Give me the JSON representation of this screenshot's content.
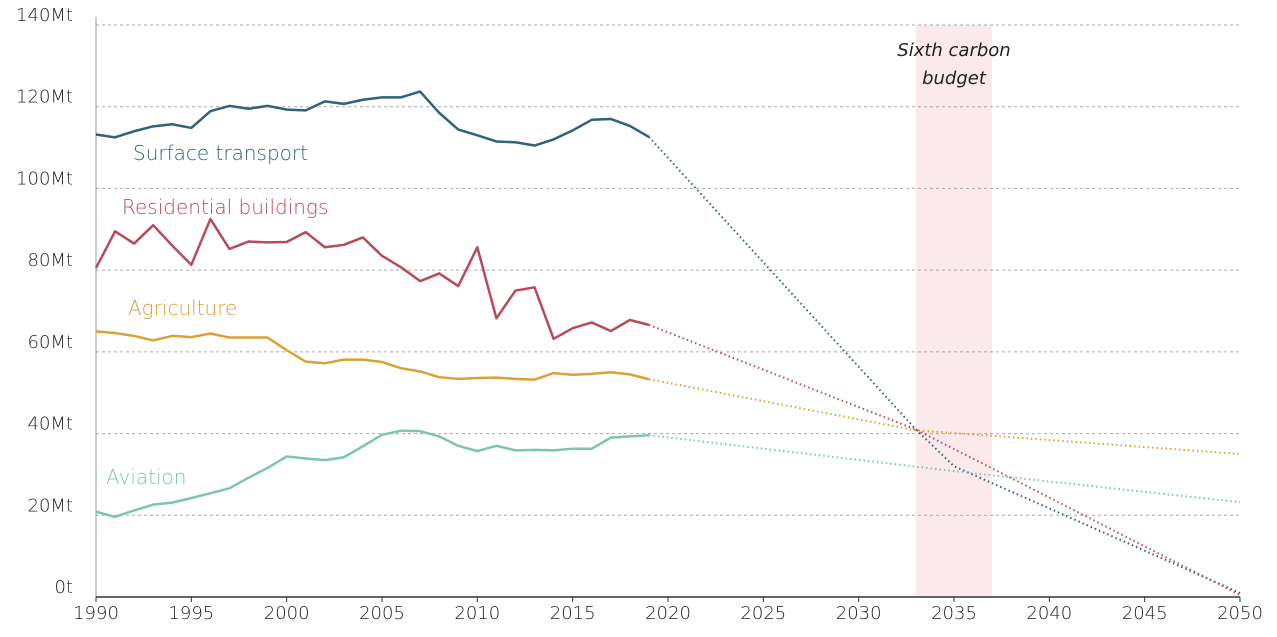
{
  "chart_data": {
    "type": "line",
    "x": [
      1990,
      1991,
      1992,
      1993,
      1994,
      1995,
      1996,
      1997,
      1998,
      1999,
      2000,
      2001,
      2002,
      2003,
      2004,
      2005,
      2006,
      2007,
      2008,
      2009,
      2010,
      2011,
      2012,
      2013,
      2014,
      2015,
      2016,
      2017,
      2018,
      2019
    ],
    "series": [
      {
        "name": "Surface transport",
        "color": "#2e6378",
        "values": [
          113.2,
          112.5,
          114,
          115.2,
          115.7,
          114.8,
          118.9,
          120.2,
          119.5,
          120.2,
          119.3,
          119.1,
          121.3,
          120.7,
          121.7,
          122.3,
          122.3,
          123.7,
          118.5,
          114.4,
          113,
          111.5,
          111.3,
          110.5,
          112,
          114.2,
          116.8,
          117,
          115.3,
          112.6
        ],
        "projection": {
          "x": [
            2019,
            2033,
            2035,
            2050
          ],
          "values": [
            112.6,
            41,
            32,
            1
          ]
        }
      },
      {
        "name": "Residential buildings",
        "color": "#b94a5a",
        "values": [
          80.5,
          89.5,
          86.5,
          91,
          86,
          81.3,
          92.5,
          85.2,
          87,
          86.8,
          86.9,
          89.3,
          85.6,
          86.2,
          88,
          83.5,
          80.7,
          77.3,
          79.2,
          76.1,
          85.6,
          68.2,
          75,
          75.8,
          63.2,
          65.8,
          67.2,
          65.1,
          67.8,
          66.6
        ],
        "projection": {
          "x": [
            2019,
            2033,
            2050
          ],
          "values": [
            66.6,
            41,
            0.5
          ]
        }
      },
      {
        "name": "Agriculture",
        "color": "#d9a236",
        "values": [
          65,
          64.6,
          63.9,
          62.8,
          63.9,
          63.6,
          64.5,
          63.5,
          63.5,
          63.5,
          60.4,
          57.6,
          57.2,
          58.1,
          58.1,
          57.5,
          56,
          55.2,
          53.8,
          53.4,
          53.6,
          53.7,
          53.4,
          53.2,
          54.8,
          54.4,
          54.6,
          55,
          54.5,
          53.3
        ],
        "projection": {
          "x": [
            2019,
            2033,
            2050
          ],
          "values": [
            53.3,
            40.8,
            35
          ]
        }
      },
      {
        "name": "Aviation",
        "color": "#7cc4b4",
        "values": [
          20.9,
          19.6,
          21.2,
          22.6,
          23.1,
          24.2,
          25.4,
          26.6,
          29.2,
          31.6,
          34.4,
          33.9,
          33.5,
          34.2,
          36.9,
          39.7,
          40.7,
          40.6,
          39.3,
          37,
          35.7,
          37,
          35.9,
          36,
          35.9,
          36.3,
          36.3,
          39,
          39.3,
          39.6
        ],
        "projection": {
          "x": [
            2019,
            2035,
            2050
          ],
          "values": [
            39.6,
            30.8,
            23.2
          ]
        }
      }
    ],
    "annotation": {
      "label_lines": [
        "Sixth carbon",
        "budget"
      ],
      "x_range": [
        2033,
        2037
      ],
      "color": "#fbe9ec"
    },
    "xlim": [
      1990,
      2050
    ],
    "xticks": [
      1990,
      1995,
      2000,
      2005,
      2010,
      2015,
      2020,
      2025,
      2030,
      2035,
      2040,
      2045,
      2050
    ],
    "ylim": [
      0,
      140
    ],
    "yticks": [
      {
        "value": 0,
        "label": "0t"
      },
      {
        "value": 20,
        "label": "20Mt"
      },
      {
        "value": 40,
        "label": "40Mt"
      },
      {
        "value": 60,
        "label": "60Mt"
      },
      {
        "value": 80,
        "label": "80Mt"
      },
      {
        "value": 100,
        "label": "100Mt"
      },
      {
        "value": 120,
        "label": "120Mt"
      },
      {
        "value": 140,
        "label": "140Mt"
      }
    ],
    "grid": true
  }
}
